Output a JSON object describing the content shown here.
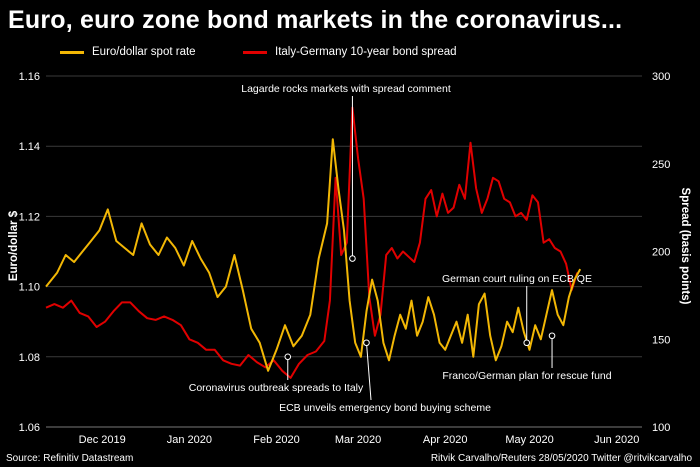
{
  "title": "Euro, euro zone bond markets in the coronavirus...",
  "footer": {
    "source": "Source: Refinitiv Datastream",
    "credit": "Ritvik Carvalho/Reuters 28/05/2020 Twitter @ritvikcarvalho"
  },
  "colors": {
    "background": "#000000",
    "eurusd": "#f2b705",
    "spread": "#e00000",
    "grid": "#3a3a3a"
  },
  "chart_data": {
    "type": "line",
    "x_tick_labels": [
      "Dec 2019",
      "Jan 2020",
      "Feb 2020",
      "Mar 2020",
      "Apr 2020",
      "May 2020",
      "Jun 2020"
    ],
    "x_tick_day_index": [
      20,
      51,
      82,
      111,
      142,
      172,
      203
    ],
    "x_range_days": [
      0,
      212
    ],
    "left_axis": {
      "label": "Euro/dollar $",
      "range": [
        1.06,
        1.16
      ],
      "ticks": [
        "1.06",
        "1.08",
        "1.10",
        "1.12",
        "1.14",
        "1.16"
      ]
    },
    "right_axis": {
      "label": "Spread (basis points)",
      "range": [
        100,
        300
      ],
      "ticks": [
        "100",
        "150",
        "200",
        "250",
        "300"
      ]
    },
    "series": [
      {
        "name": "Euro/dollar spot rate",
        "axis": "left",
        "x_day": [
          0,
          4,
          7,
          10,
          13,
          16,
          19,
          22,
          25,
          28,
          31,
          34,
          37,
          40,
          43,
          46,
          49,
          52,
          55,
          58,
          61,
          64,
          67,
          70,
          73,
          76,
          79,
          82,
          85,
          88,
          91,
          94,
          97,
          100,
          102,
          104,
          106,
          108,
          110,
          112,
          114,
          116,
          118,
          120,
          122,
          124,
          126,
          128,
          130,
          132,
          134,
          136,
          138,
          140,
          142,
          144,
          146,
          148,
          150,
          152,
          154,
          156,
          158,
          160,
          162,
          164,
          166,
          168,
          170,
          172,
          174,
          176,
          178,
          180,
          182,
          184,
          186,
          188,
          190
        ],
        "values": [
          1.1,
          1.104,
          1.109,
          1.107,
          1.11,
          1.113,
          1.116,
          1.122,
          1.113,
          1.111,
          1.109,
          1.118,
          1.112,
          1.109,
          1.114,
          1.111,
          1.106,
          1.113,
          1.108,
          1.104,
          1.097,
          1.1,
          1.109,
          1.099,
          1.088,
          1.084,
          1.076,
          1.082,
          1.089,
          1.083,
          1.086,
          1.092,
          1.108,
          1.118,
          1.142,
          1.128,
          1.116,
          1.096,
          1.084,
          1.08,
          1.093,
          1.102,
          1.096,
          1.084,
          1.079,
          1.086,
          1.092,
          1.088,
          1.096,
          1.086,
          1.09,
          1.097,
          1.092,
          1.084,
          1.082,
          1.086,
          1.09,
          1.084,
          1.092,
          1.08,
          1.095,
          1.098,
          1.086,
          1.079,
          1.083,
          1.09,
          1.087,
          1.094,
          1.087,
          1.082,
          1.089,
          1.085,
          1.092,
          1.099,
          1.092,
          1.089,
          1.097,
          1.102,
          1.105
        ]
      },
      {
        "name": "Italy-Germany 10-year bond spread",
        "axis": "right",
        "x_day": [
          0,
          3,
          6,
          9,
          12,
          15,
          18,
          21,
          24,
          27,
          30,
          33,
          36,
          39,
          42,
          45,
          48,
          51,
          54,
          57,
          60,
          63,
          66,
          69,
          72,
          75,
          78,
          81,
          84,
          87,
          90,
          93,
          96,
          99,
          101,
          103,
          105,
          107,
          109,
          111,
          113,
          115,
          117,
          119,
          121,
          123,
          125,
          127,
          129,
          131,
          133,
          135,
          137,
          139,
          141,
          143,
          145,
          147,
          149,
          151,
          153,
          155,
          157,
          159,
          161,
          163,
          165,
          167,
          169,
          171,
          173,
          175,
          177,
          179,
          181,
          183,
          185,
          187,
          189
        ],
        "values": [
          168,
          170,
          168,
          172,
          165,
          163,
          157,
          160,
          166,
          171,
          171,
          166,
          162,
          161,
          163,
          161,
          158,
          150,
          148,
          144,
          144,
          138,
          136,
          135,
          141,
          137,
          134,
          138,
          132,
          128,
          136,
          141,
          143,
          149,
          172,
          242,
          198,
          205,
          282,
          253,
          230,
          174,
          152,
          164,
          198,
          202,
          196,
          200,
          197,
          194,
          205,
          230,
          235,
          220,
          233,
          222,
          225,
          238,
          230,
          262,
          236,
          222,
          230,
          242,
          240,
          230,
          228,
          220,
          222,
          218,
          232,
          228,
          205,
          207,
          202,
          200,
          193,
          178,
          188
        ]
      }
    ],
    "annotations": [
      {
        "text": "Lagarde rocks markets with spread comment",
        "x_day": 109,
        "value": 1.108,
        "axis": "left"
      },
      {
        "text": "German court ruling on ECB QE",
        "x_day": 171,
        "value": 1.084,
        "axis": "left"
      },
      {
        "text": "Franco/German plan for rescue fund",
        "x_day": 180,
        "value": 1.086,
        "axis": "left"
      },
      {
        "text": "Coronavirus outbreak spreads to Italy",
        "x_day": 86,
        "value": 1.08,
        "axis": "left"
      },
      {
        "text": "ECB unveils emergency bond buying scheme",
        "x_day": 114,
        "value": 1.084,
        "axis": "left"
      }
    ]
  }
}
